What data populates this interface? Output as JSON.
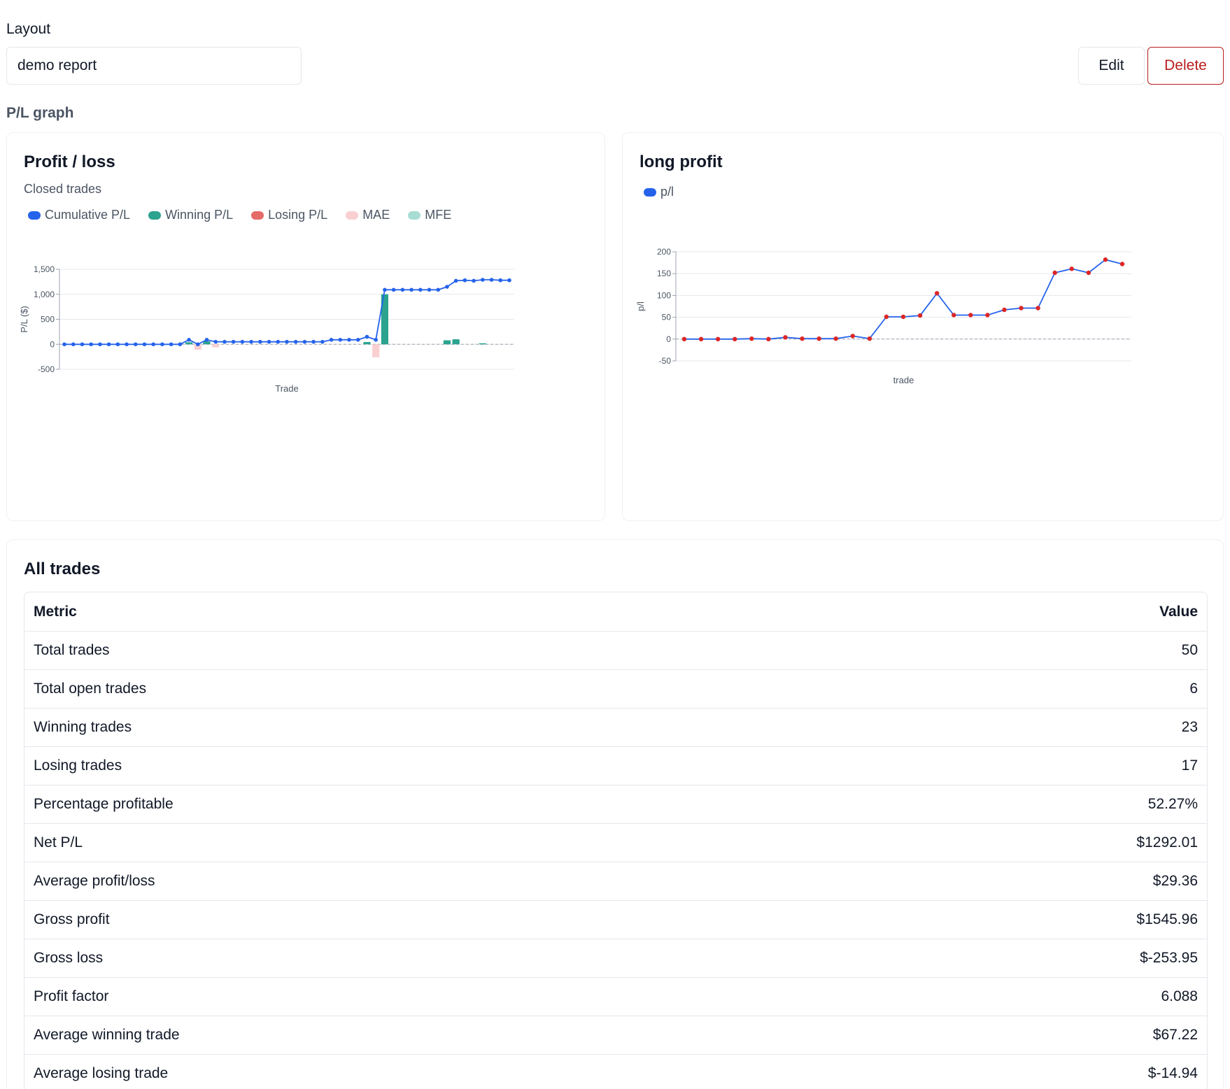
{
  "layout": {
    "label": "Layout",
    "selected": "demo report",
    "edit_label": "Edit",
    "delete_label": "Delete"
  },
  "section": {
    "title": "P/L graph"
  },
  "pl_chart": {
    "title": "Profit / loss",
    "subtitle": "Closed trades",
    "legend": [
      {
        "name": "Cumulative P/L",
        "color": "#2563eb"
      },
      {
        "name": "Winning P/L",
        "color": "#2ba38f"
      },
      {
        "name": "Losing P/L",
        "color": "#e56b68"
      },
      {
        "name": "MAE",
        "color": "#f9cfcf"
      },
      {
        "name": "MFE",
        "color": "#a8ddd3"
      }
    ]
  },
  "long_chart": {
    "title": "long profit",
    "legend": [
      {
        "name": "p/l",
        "color": "#2563eb"
      }
    ]
  },
  "chart_data": [
    {
      "type": "line",
      "title": "Profit / loss",
      "subtitle": "Closed trades",
      "xlabel": "Trade",
      "ylabel": "P/L ($)",
      "ylim": [
        -500,
        1500
      ],
      "yticks": [
        -500,
        0,
        500,
        1000,
        1500
      ],
      "ytick_labels": [
        "-500",
        "0",
        "500",
        "1,000",
        "1,500"
      ],
      "grid": true,
      "legend_position": "top-left",
      "series": [
        {
          "name": "Cumulative P/L",
          "type": "line",
          "values": [
            0,
            0,
            0,
            0,
            0,
            0,
            0,
            0,
            0,
            0,
            0,
            0,
            0,
            0,
            90,
            0,
            90,
            50,
            50,
            50,
            50,
            50,
            50,
            50,
            50,
            50,
            50,
            50,
            50,
            50,
            90,
            90,
            90,
            90,
            150,
            90,
            1090,
            1090,
            1090,
            1090,
            1090,
            1090,
            1090,
            1150,
            1270,
            1280,
            1270,
            1290,
            1290,
            1280,
            1280
          ]
        },
        {
          "name": "Winning P/L",
          "type": "bar",
          "values": [
            0,
            0,
            0,
            0,
            0,
            0,
            0,
            0,
            0,
            0,
            0,
            0,
            0,
            0,
            40,
            0,
            60,
            0,
            0,
            0,
            0,
            0,
            0,
            0,
            0,
            0,
            0,
            0,
            0,
            0,
            0,
            0,
            0,
            0,
            45,
            0,
            1000,
            0,
            0,
            0,
            0,
            0,
            0,
            80,
            100,
            0,
            0,
            20,
            0,
            0,
            0
          ]
        },
        {
          "name": "MAE",
          "type": "bar",
          "values": [
            0,
            0,
            0,
            0,
            0,
            0,
            0,
            0,
            0,
            0,
            0,
            0,
            0,
            0,
            0,
            -110,
            0,
            -60,
            0,
            0,
            0,
            0,
            0,
            0,
            0,
            0,
            0,
            0,
            0,
            0,
            0,
            0,
            0,
            0,
            0,
            -260,
            0,
            0,
            0,
            0,
            0,
            0,
            0,
            0,
            0,
            0,
            0,
            0,
            0,
            0,
            0
          ]
        }
      ]
    },
    {
      "type": "line",
      "title": "long profit",
      "xlabel": "trade",
      "ylabel": "p/l",
      "ylim": [
        -50,
        200
      ],
      "yticks": [
        -50,
        0,
        50,
        100,
        150,
        200
      ],
      "grid": true,
      "legend_position": "top-left",
      "series": [
        {
          "name": "p/l",
          "values": [
            0,
            0,
            0,
            0,
            1,
            0,
            4,
            1,
            1,
            1,
            7,
            1,
            51,
            51,
            54,
            105,
            55,
            55,
            55,
            67,
            71,
            71,
            152,
            161,
            152,
            182,
            172
          ]
        }
      ]
    }
  ],
  "table": {
    "title": "All trades",
    "header": {
      "metric": "Metric",
      "value": "Value"
    },
    "rows": [
      {
        "metric": "Total trades",
        "value": "50"
      },
      {
        "metric": "Total open trades",
        "value": "6"
      },
      {
        "metric": "Winning trades",
        "value": "23"
      },
      {
        "metric": "Losing trades",
        "value": "17"
      },
      {
        "metric": "Percentage profitable",
        "value": "52.27%"
      },
      {
        "metric": "Net P/L",
        "value": "$1292.01"
      },
      {
        "metric": "Average profit/loss",
        "value": "$29.36"
      },
      {
        "metric": "Gross profit",
        "value": "$1545.96"
      },
      {
        "metric": "Gross loss",
        "value": "$-253.95"
      },
      {
        "metric": "Profit factor",
        "value": "6.088"
      },
      {
        "metric": "Average winning trade",
        "value": "$67.22"
      },
      {
        "metric": "Average losing trade",
        "value": "$-14.94"
      }
    ]
  }
}
